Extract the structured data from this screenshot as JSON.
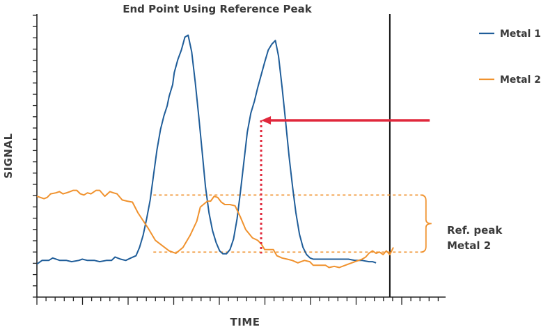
{
  "chart_data": {
    "type": "line",
    "title": "End Point Using Reference Peak",
    "xlabel": "TIME",
    "ylabel": "SIGNAL",
    "xlim": [
      0,
      1
    ],
    "ylim": [
      0,
      1
    ],
    "grid": false,
    "legend_placement": "top-right",
    "series": [
      {
        "name": "Metal 1",
        "color": "#1f5d99",
        "points": [
          [
            0.0,
            0.058
          ],
          [
            0.013,
            0.073
          ],
          [
            0.03,
            0.073
          ],
          [
            0.04,
            0.083
          ],
          [
            0.058,
            0.073
          ],
          [
            0.075,
            0.073
          ],
          [
            0.088,
            0.068
          ],
          [
            0.106,
            0.073
          ],
          [
            0.115,
            0.078
          ],
          [
            0.128,
            0.073
          ],
          [
            0.146,
            0.073
          ],
          [
            0.159,
            0.068
          ],
          [
            0.176,
            0.073
          ],
          [
            0.189,
            0.073
          ],
          [
            0.198,
            0.087
          ],
          [
            0.212,
            0.078
          ],
          [
            0.225,
            0.073
          ],
          [
            0.238,
            0.083
          ],
          [
            0.251,
            0.092
          ],
          [
            0.26,
            0.126
          ],
          [
            0.269,
            0.175
          ],
          [
            0.278,
            0.243
          ],
          [
            0.287,
            0.32
          ],
          [
            0.295,
            0.417
          ],
          [
            0.304,
            0.524
          ],
          [
            0.313,
            0.607
          ],
          [
            0.322,
            0.665
          ],
          [
            0.33,
            0.704
          ],
          [
            0.335,
            0.743
          ],
          [
            0.344,
            0.791
          ],
          [
            0.348,
            0.84
          ],
          [
            0.357,
            0.893
          ],
          [
            0.366,
            0.932
          ],
          [
            0.375,
            0.985
          ],
          [
            0.383,
            0.993
          ],
          [
            0.392,
            0.925
          ],
          [
            0.401,
            0.801
          ],
          [
            0.41,
            0.66
          ],
          [
            0.419,
            0.51
          ],
          [
            0.427,
            0.374
          ],
          [
            0.436,
            0.267
          ],
          [
            0.445,
            0.194
          ],
          [
            0.454,
            0.146
          ],
          [
            0.463,
            0.112
          ],
          [
            0.471,
            0.1
          ],
          [
            0.48,
            0.1
          ],
          [
            0.489,
            0.117
          ],
          [
            0.498,
            0.16
          ],
          [
            0.507,
            0.243
          ],
          [
            0.515,
            0.345
          ],
          [
            0.524,
            0.471
          ],
          [
            0.533,
            0.597
          ],
          [
            0.542,
            0.675
          ],
          [
            0.551,
            0.723
          ],
          [
            0.559,
            0.777
          ],
          [
            0.568,
            0.83
          ],
          [
            0.577,
            0.883
          ],
          [
            0.586,
            0.932
          ],
          [
            0.595,
            0.956
          ],
          [
            0.604,
            0.971
          ],
          [
            0.612,
            0.908
          ],
          [
            0.621,
            0.781
          ],
          [
            0.63,
            0.641
          ],
          [
            0.639,
            0.495
          ],
          [
            0.648,
            0.369
          ],
          [
            0.656,
            0.267
          ],
          [
            0.665,
            0.18
          ],
          [
            0.674,
            0.126
          ],
          [
            0.683,
            0.097
          ],
          [
            0.692,
            0.083
          ],
          [
            0.7,
            0.078
          ],
          [
            0.718,
            0.078
          ],
          [
            0.736,
            0.078
          ],
          [
            0.753,
            0.078
          ],
          [
            0.771,
            0.078
          ],
          [
            0.789,
            0.078
          ],
          [
            0.806,
            0.073
          ],
          [
            0.824,
            0.073
          ],
          [
            0.841,
            0.068
          ],
          [
            0.85,
            0.068
          ],
          [
            0.859,
            0.063
          ]
        ]
      },
      {
        "name": "Metal 2",
        "color": "#f0922e",
        "points": [
          [
            0.0,
            0.335
          ],
          [
            0.018,
            0.325
          ],
          [
            0.026,
            0.33
          ],
          [
            0.035,
            0.345
          ],
          [
            0.048,
            0.349
          ],
          [
            0.057,
            0.354
          ],
          [
            0.066,
            0.345
          ],
          [
            0.075,
            0.349
          ],
          [
            0.084,
            0.354
          ],
          [
            0.092,
            0.359
          ],
          [
            0.101,
            0.359
          ],
          [
            0.11,
            0.345
          ],
          [
            0.119,
            0.34
          ],
          [
            0.128,
            0.349
          ],
          [
            0.137,
            0.345
          ],
          [
            0.15,
            0.359
          ],
          [
            0.159,
            0.359
          ],
          [
            0.172,
            0.335
          ],
          [
            0.185,
            0.354
          ],
          [
            0.194,
            0.349
          ],
          [
            0.203,
            0.345
          ],
          [
            0.216,
            0.32
          ],
          [
            0.229,
            0.315
          ],
          [
            0.242,
            0.311
          ],
          [
            0.256,
            0.267
          ],
          [
            0.282,
            0.204
          ],
          [
            0.3,
            0.155
          ],
          [
            0.335,
            0.112
          ],
          [
            0.352,
            0.102
          ],
          [
            0.37,
            0.126
          ],
          [
            0.388,
            0.175
          ],
          [
            0.405,
            0.233
          ],
          [
            0.414,
            0.291
          ],
          [
            0.432,
            0.315
          ],
          [
            0.44,
            0.315
          ],
          [
            0.449,
            0.335
          ],
          [
            0.458,
            0.33
          ],
          [
            0.467,
            0.311
          ],
          [
            0.476,
            0.301
          ],
          [
            0.489,
            0.301
          ],
          [
            0.502,
            0.296
          ],
          [
            0.515,
            0.252
          ],
          [
            0.529,
            0.199
          ],
          [
            0.546,
            0.165
          ],
          [
            0.559,
            0.155
          ],
          [
            0.568,
            0.141
          ],
          [
            0.577,
            0.117
          ],
          [
            0.59,
            0.117
          ],
          [
            0.599,
            0.117
          ],
          [
            0.608,
            0.092
          ],
          [
            0.621,
            0.083
          ],
          [
            0.634,
            0.078
          ],
          [
            0.647,
            0.073
          ],
          [
            0.661,
            0.063
          ],
          [
            0.669,
            0.068
          ],
          [
            0.678,
            0.073
          ],
          [
            0.691,
            0.068
          ],
          [
            0.7,
            0.053
          ],
          [
            0.718,
            0.053
          ],
          [
            0.731,
            0.053
          ],
          [
            0.74,
            0.044
          ],
          [
            0.753,
            0.049
          ],
          [
            0.766,
            0.044
          ],
          [
            0.789,
            0.058
          ],
          [
            0.806,
            0.068
          ],
          [
            0.824,
            0.078
          ],
          [
            0.833,
            0.087
          ],
          [
            0.841,
            0.102
          ],
          [
            0.85,
            0.112
          ],
          [
            0.859,
            0.102
          ],
          [
            0.868,
            0.107
          ],
          [
            0.877,
            0.097
          ],
          [
            0.885,
            0.112
          ],
          [
            0.894,
            0.097
          ],
          [
            0.903,
            0.126
          ]
        ]
      }
    ],
    "reference_lines": {
      "upper_y": 0.34,
      "lower_y": 0.107,
      "x_start": 0.295,
      "x_end": 0.982,
      "color": "#f0922e"
    },
    "end_point": {
      "x": 0.568,
      "y": 0.645,
      "arrow_from_x": 0.995,
      "color": "#e0283c"
    },
    "vertical_line_x": 0.894,
    "annotation": {
      "line1": "Ref. peak",
      "line2": "Metal 2"
    }
  }
}
